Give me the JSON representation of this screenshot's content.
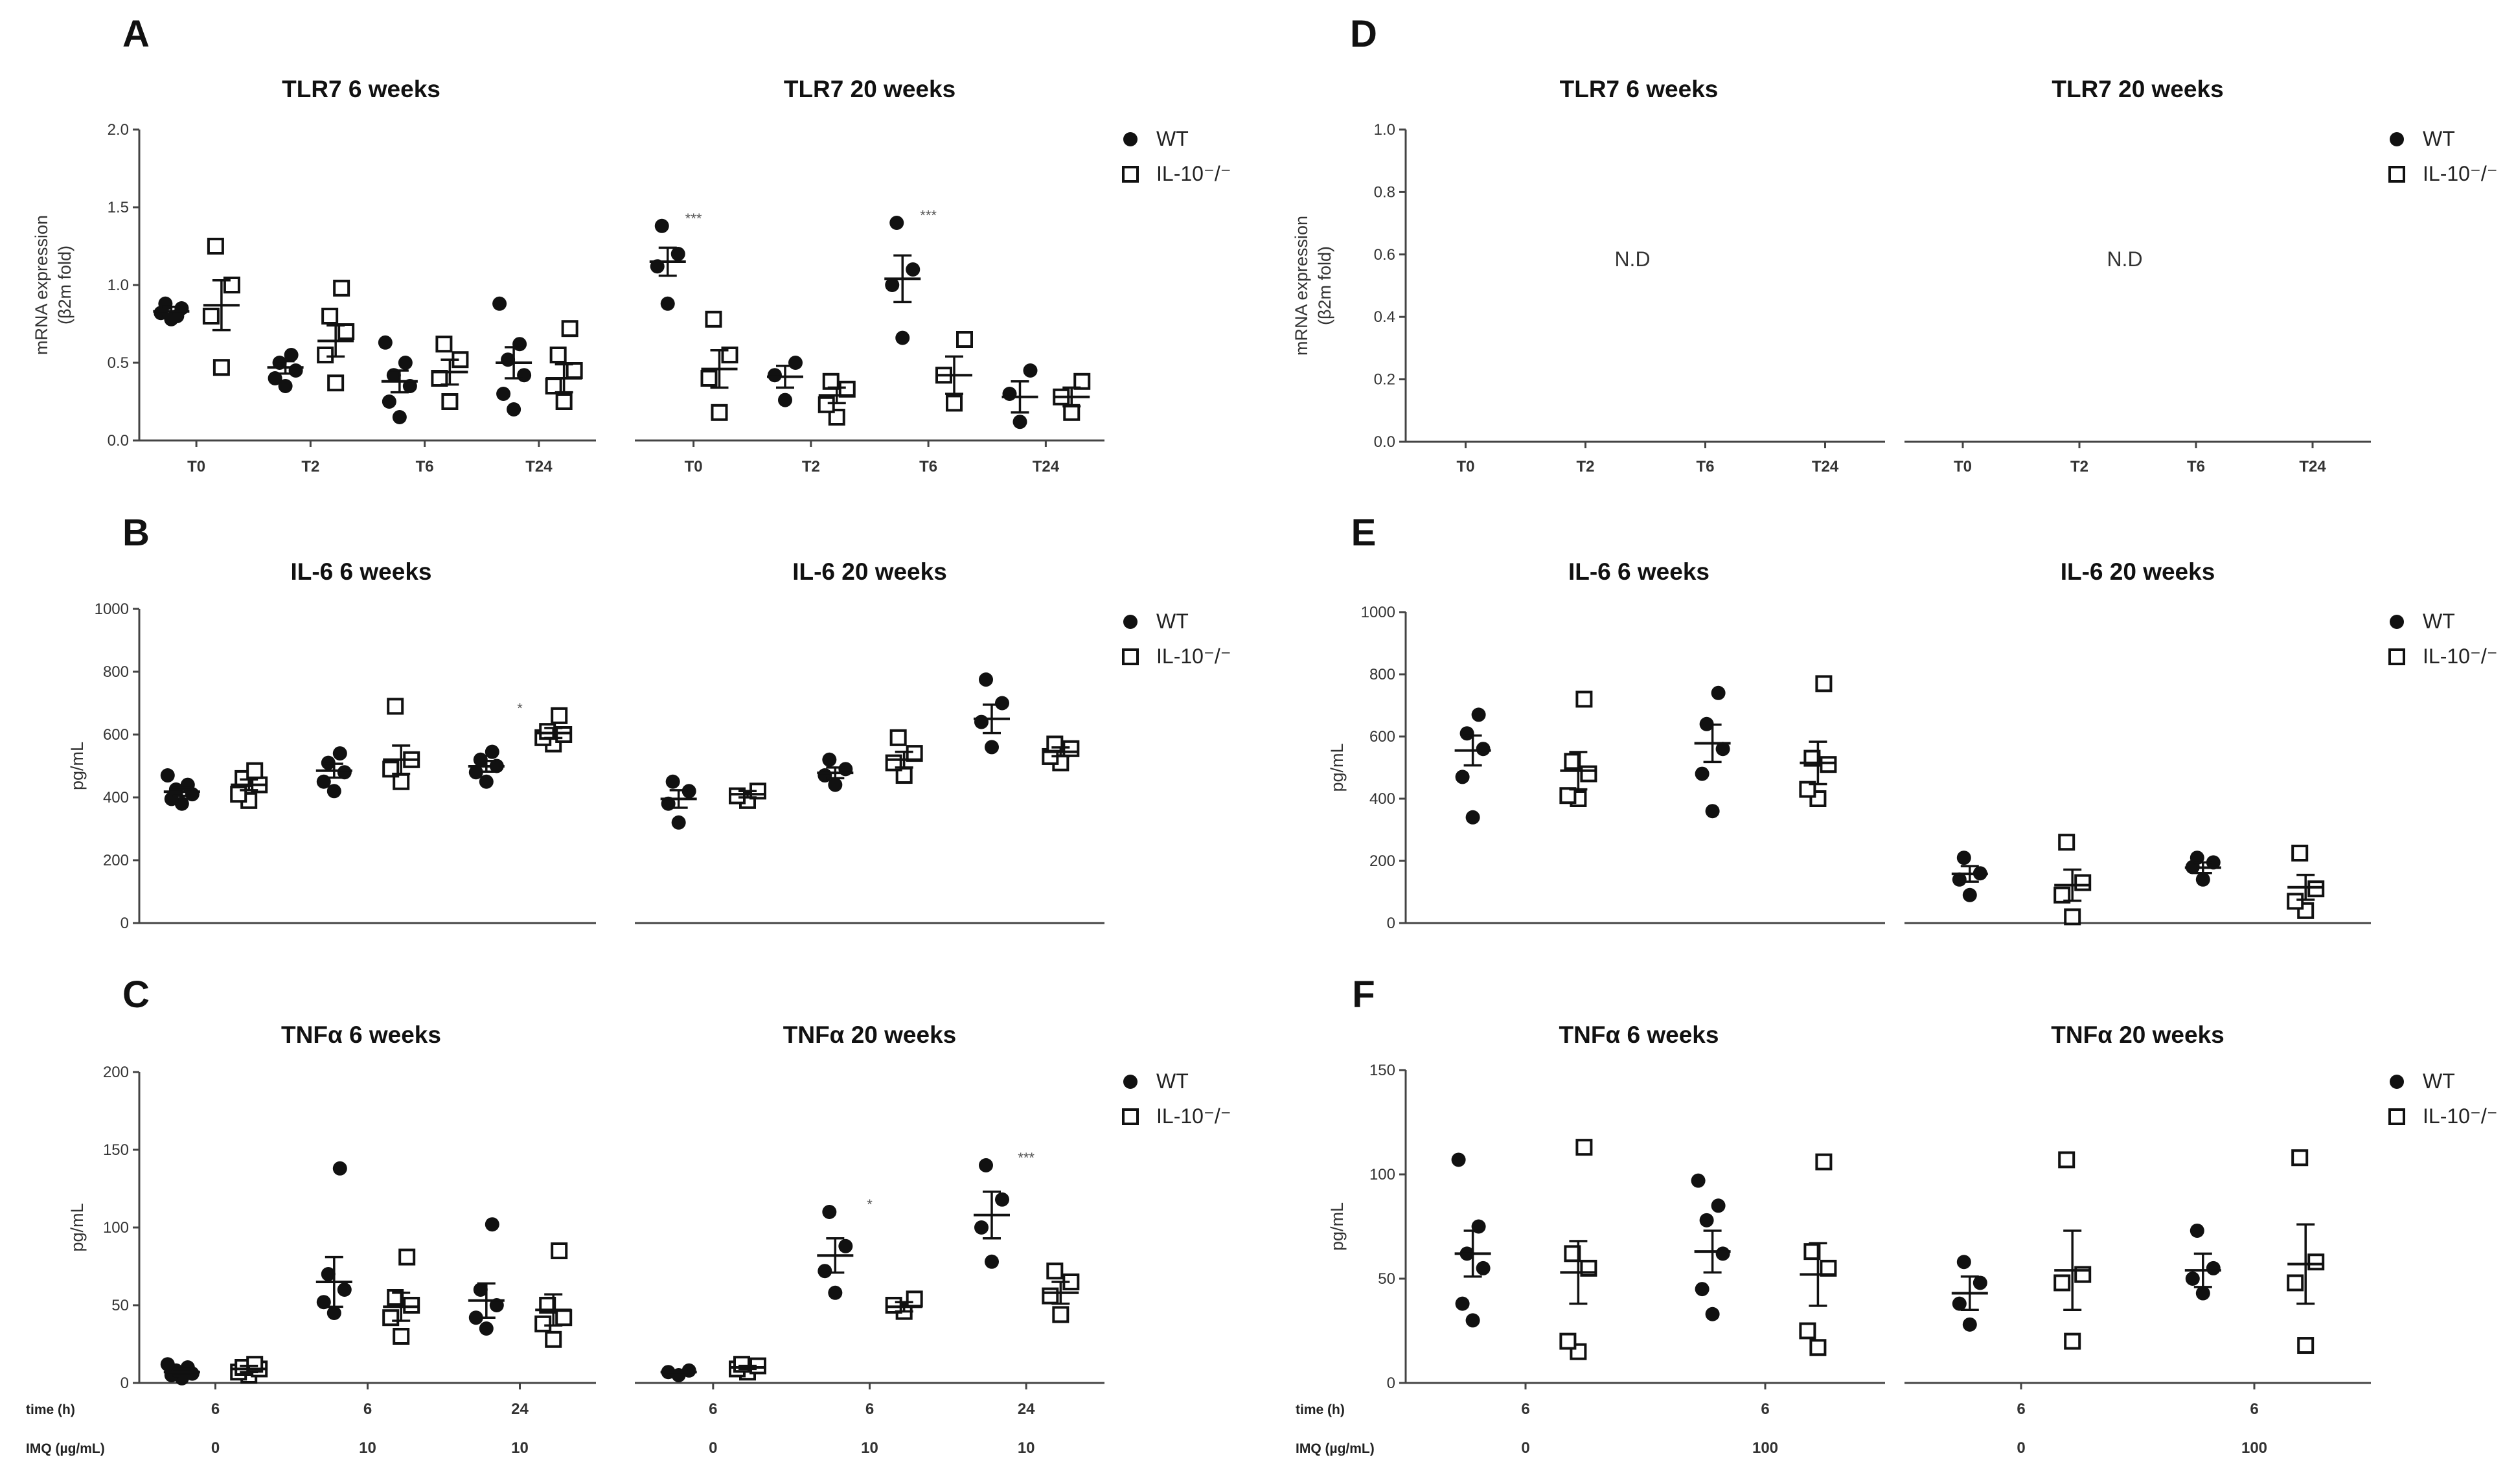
{
  "figure": {
    "legend_labels": [
      "WT",
      "IL-10⁻/⁻"
    ]
  },
  "chart_data": [
    {
      "id": "A",
      "panel_letter": "A",
      "type": "scatter",
      "ylabel": "mRNA expression",
      "ylabel2": "(β2m fold)",
      "ylim": [
        0,
        2.0
      ],
      "yticks": [
        "0.0",
        "0.5",
        "1.0",
        "1.5",
        "2.0"
      ],
      "yvals": [
        0,
        0.5,
        1.0,
        1.5,
        2.0
      ],
      "subplots": [
        {
          "title": "TLR7 6 weeks",
          "categories": [
            "T0",
            "T2",
            "T6",
            "T24"
          ],
          "groups": [
            {
              "wt": [
                0.78,
                0.82,
                0.85,
                0.88,
                0.8
              ],
              "wt_mean": 0.83,
              "wt_sem": 0.03,
              "ko": [
                0.47,
                0.8,
                1.0,
                1.25
              ],
              "ko_mean": 0.87,
              "ko_sem": 0.16,
              "sig": ""
            },
            {
              "wt": [
                0.35,
                0.4,
                0.45,
                0.5,
                0.55
              ],
              "wt_mean": 0.47,
              "wt_sem": 0.04,
              "ko": [
                0.37,
                0.55,
                0.7,
                0.8,
                0.98
              ],
              "ko_mean": 0.64,
              "ko_sem": 0.1,
              "sig": ""
            },
            {
              "wt": [
                0.15,
                0.25,
                0.35,
                0.42,
                0.5,
                0.63
              ],
              "wt_mean": 0.38,
              "wt_sem": 0.07,
              "ko": [
                0.25,
                0.4,
                0.52,
                0.62
              ],
              "ko_mean": 0.44,
              "ko_sem": 0.08,
              "sig": ""
            },
            {
              "wt": [
                0.2,
                0.3,
                0.42,
                0.52,
                0.62,
                0.88
              ],
              "wt_mean": 0.5,
              "wt_sem": 0.1,
              "ko": [
                0.25,
                0.35,
                0.45,
                0.55,
                0.72
              ],
              "ko_mean": 0.4,
              "ko_sem": 0.09,
              "sig": ""
            }
          ]
        },
        {
          "title": "TLR7 20 weeks",
          "categories": [
            "T0",
            "T2",
            "T6",
            "T24"
          ],
          "groups": [
            {
              "wt": [
                0.88,
                1.12,
                1.2,
                1.38
              ],
              "wt_mean": 1.15,
              "wt_sem": 0.09,
              "ko": [
                0.18,
                0.4,
                0.55,
                0.78
              ],
              "ko_mean": 0.46,
              "ko_sem": 0.12,
              "sig": "***"
            },
            {
              "wt": [
                0.26,
                0.42,
                0.5
              ],
              "wt_mean": 0.41,
              "wt_sem": 0.07,
              "ko": [
                0.15,
                0.23,
                0.33,
                0.38
              ],
              "ko_mean": 0.29,
              "ko_sem": 0.05,
              "sig": ""
            },
            {
              "wt": [
                0.66,
                1.0,
                1.1,
                1.4
              ],
              "wt_mean": 1.04,
              "wt_sem": 0.15,
              "ko": [
                0.24,
                0.42,
                0.65
              ],
              "ko_mean": 0.42,
              "ko_sem": 0.12,
              "sig": "***"
            },
            {
              "wt": [
                0.12,
                0.3,
                0.45
              ],
              "wt_mean": 0.28,
              "wt_sem": 0.1,
              "ko": [
                0.18,
                0.28,
                0.38
              ],
              "ko_mean": 0.28,
              "ko_sem": 0.06,
              "sig": ""
            }
          ]
        }
      ]
    },
    {
      "id": "B",
      "panel_letter": "B",
      "type": "scatter",
      "ylabel": "pg/mL",
      "ylabel2": "",
      "ylim": [
        0,
        1000
      ],
      "yticks": [
        "0",
        "200",
        "400",
        "600",
        "800",
        "1000"
      ],
      "yvals": [
        0,
        200,
        400,
        600,
        800,
        1000
      ],
      "subplots": [
        {
          "title": "IL-6 6 weeks",
          "categories": [
            "",
            "",
            ""
          ],
          "groups": [
            {
              "wt": [
                380,
                395,
                410,
                425,
                440,
                470
              ],
              "wt_mean": 418,
              "wt_sem": 13,
              "ko": [
                390,
                410,
                440,
                460,
                485
              ],
              "ko_mean": 440,
              "ko_sem": 17,
              "sig": ""
            },
            {
              "wt": [
                420,
                450,
                480,
                510,
                540
              ],
              "wt_mean": 485,
              "wt_sem": 22,
              "ko": [
                450,
                490,
                520,
                690
              ],
              "ko_mean": 520,
              "ko_sem": 45,
              "sig": ""
            },
            {
              "wt": [
                450,
                480,
                500,
                520,
                545
              ],
              "wt_mean": 499,
              "wt_sem": 17,
              "ko": [
                570,
                590,
                600,
                610,
                660
              ],
              "ko_mean": 605,
              "ko_sem": 16,
              "sig": "*"
            }
          ]
        },
        {
          "title": "IL-6 20 weeks",
          "categories": [
            "",
            "",
            ""
          ],
          "groups": [
            {
              "wt": [
                320,
                380,
                420,
                450
              ],
              "wt_mean": 395,
              "wt_sem": 28,
              "ko": [
                390,
                405,
                420
              ],
              "ko_mean": 410,
              "ko_sem": 10,
              "sig": ""
            },
            {
              "wt": [
                440,
                470,
                490,
                520
              ],
              "wt_mean": 478,
              "wt_sem": 17,
              "ko": [
                470,
                510,
                540,
                590
              ],
              "ko_mean": 520,
              "ko_sem": 25,
              "sig": ""
            },
            {
              "wt": [
                560,
                640,
                700,
                775
              ],
              "wt_mean": 650,
              "wt_sem": 45,
              "ko": [
                510,
                530,
                555,
                570
              ],
              "ko_mean": 545,
              "ko_sem": 14,
              "sig": ""
            }
          ]
        }
      ]
    },
    {
      "id": "C",
      "panel_letter": "C",
      "type": "scatter",
      "ylabel": "pg/mL",
      "ylabel2": "",
      "ylim": [
        0,
        200
      ],
      "yticks": [
        "0",
        "50",
        "100",
        "150",
        "200"
      ],
      "yvals": [
        0,
        50,
        100,
        150,
        200
      ],
      "row_labels": [
        "time (h)",
        "IMQ (µg/mL)"
      ],
      "subplots": [
        {
          "title": "TNFα 6 weeks",
          "categories": [
            "6",
            "6",
            "24"
          ],
          "categories2": [
            "0",
            "10",
            "10"
          ],
          "groups": [
            {
              "wt": [
                3,
                5,
                6,
                8,
                10,
                12
              ],
              "wt_mean": 7,
              "wt_sem": 2,
              "ko": [
                5,
                7,
                9,
                10,
                12
              ],
              "ko_mean": 9,
              "ko_sem": 2,
              "sig": ""
            },
            {
              "wt": [
                45,
                52,
                60,
                70,
                138
              ],
              "wt_mean": 65,
              "wt_sem": 16,
              "ko": [
                30,
                42,
                50,
                55,
                81
              ],
              "ko_mean": 49,
              "ko_sem": 9,
              "sig": ""
            },
            {
              "wt": [
                35,
                42,
                50,
                60,
                102
              ],
              "wt_mean": 53,
              "wt_sem": 11,
              "ko": [
                28,
                38,
                42,
                50,
                85
              ],
              "ko_mean": 47,
              "ko_sem": 10,
              "sig": ""
            }
          ]
        },
        {
          "title": "TNFα 20 weeks",
          "categories": [
            "6",
            "6",
            "24"
          ],
          "categories2": [
            "0",
            "10",
            "10"
          ],
          "groups": [
            {
              "wt": [
                5,
                7,
                8
              ],
              "wt_mean": 7,
              "wt_sem": 1,
              "ko": [
                7,
                9,
                11,
                12
              ],
              "ko_mean": 10,
              "ko_sem": 1,
              "sig": ""
            },
            {
              "wt": [
                58,
                72,
                88,
                110
              ],
              "wt_mean": 82,
              "wt_sem": 11,
              "ko": [
                46,
                50,
                54
              ],
              "ko_mean": 49,
              "ko_sem": 3,
              "sig": "*"
            },
            {
              "wt": [
                78,
                100,
                118,
                140
              ],
              "wt_mean": 108,
              "wt_sem": 15,
              "ko": [
                44,
                56,
                65,
                72
              ],
              "ko_mean": 58,
              "ko_sem": 7,
              "sig": "***"
            }
          ]
        }
      ]
    },
    {
      "id": "D",
      "panel_letter": "D",
      "type": "scatter",
      "ylabel": "mRNA expression",
      "ylabel2": "(β2m fold)",
      "ylim": [
        0,
        1.0
      ],
      "yticks": [
        "0.0",
        "0.2",
        "0.4",
        "0.6",
        "0.8",
        "1.0"
      ],
      "yvals": [
        0,
        0.2,
        0.4,
        0.6,
        0.8,
        1.0
      ],
      "subplots": [
        {
          "title": "TLR7 6 weeks",
          "categories": [
            "T0",
            "T2",
            "T6",
            "T24"
          ],
          "groups": [],
          "note": "N.D"
        },
        {
          "title": "TLR7 20 weeks",
          "categories": [
            "T0",
            "T2",
            "T6",
            "T24"
          ],
          "groups": [],
          "note": "N.D"
        }
      ]
    },
    {
      "id": "E",
      "panel_letter": "E",
      "type": "scatter",
      "ylabel": "pg/mL",
      "ylabel2": "",
      "ylim": [
        0,
        1000
      ],
      "yticks": [
        "0",
        "200",
        "400",
        "600",
        "800",
        "1000"
      ],
      "yvals": [
        0,
        200,
        400,
        600,
        800,
        1000
      ],
      "subplots": [
        {
          "title": "IL-6 6 weeks",
          "categories": [
            "",
            ""
          ],
          "groups": [
            {
              "wt": [
                340,
                470,
                560,
                610,
                670
              ],
              "wt_mean": 555,
              "wt_sem": 48,
              "ko": [
                400,
                410,
                480,
                520,
                720
              ],
              "ko_mean": 490,
              "ko_sem": 60,
              "sig": ""
            },
            {
              "wt": [
                360,
                480,
                560,
                640,
                740
              ],
              "wt_mean": 578,
              "wt_sem": 60,
              "ko": [
                400,
                430,
                510,
                530,
                770
              ],
              "ko_mean": 515,
              "ko_sem": 68,
              "sig": ""
            }
          ]
        },
        {
          "title": "IL-6 20 weeks",
          "categories": [
            "",
            ""
          ],
          "groups": [
            {
              "wt": [
                90,
                140,
                160,
                210
              ],
              "wt_mean": 158,
              "wt_sem": 25,
              "ko": [
                20,
                90,
                130,
                260
              ],
              "ko_mean": 122,
              "ko_sem": 50,
              "sig": ""
            },
            {
              "wt": [
                140,
                180,
                195,
                210
              ],
              "wt_mean": 178,
              "wt_sem": 17,
              "ko": [
                40,
                70,
                110,
                225
              ],
              "ko_mean": 115,
              "ko_sem": 40,
              "sig": ""
            }
          ]
        }
      ]
    },
    {
      "id": "F",
      "panel_letter": "F",
      "type": "scatter",
      "ylabel": "pg/mL",
      "ylabel2": "",
      "ylim": [
        0,
        150
      ],
      "yticks": [
        "0",
        "50",
        "100",
        "150"
      ],
      "yvals": [
        0,
        50,
        100,
        150
      ],
      "row_labels": [
        "time (h)",
        "IMQ (µg/mL)"
      ],
      "subplots": [
        {
          "title": "TNFα 6 weeks",
          "categories": [
            "6",
            "6"
          ],
          "categories2": [
            "0",
            "100"
          ],
          "groups": [
            {
              "wt": [
                30,
                38,
                55,
                62,
                75,
                107
              ],
              "wt_mean": 62,
              "wt_sem": 11,
              "ko": [
                15,
                20,
                55,
                62,
                113
              ],
              "ko_mean": 53,
              "ko_sem": 15,
              "sig": ""
            },
            {
              "wt": [
                33,
                45,
                62,
                78,
                85,
                97
              ],
              "wt_mean": 63,
              "wt_sem": 10,
              "ko": [
                17,
                25,
                55,
                63,
                106
              ],
              "ko_mean": 52,
              "ko_sem": 15,
              "sig": ""
            }
          ]
        },
        {
          "title": "TNFα 20 weeks",
          "categories": [
            "6",
            "6"
          ],
          "categories2": [
            "0",
            "100"
          ],
          "groups": [
            {
              "wt": [
                28,
                38,
                48,
                58
              ],
              "wt_mean": 43,
              "wt_sem": 8,
              "ko": [
                20,
                48,
                52,
                107
              ],
              "ko_mean": 54,
              "ko_sem": 19,
              "sig": ""
            },
            {
              "wt": [
                43,
                50,
                55,
                73
              ],
              "wt_mean": 54,
              "wt_sem": 8,
              "ko": [
                18,
                48,
                58,
                108
              ],
              "ko_mean": 57,
              "ko_sem": 19,
              "sig": ""
            }
          ]
        }
      ]
    }
  ]
}
